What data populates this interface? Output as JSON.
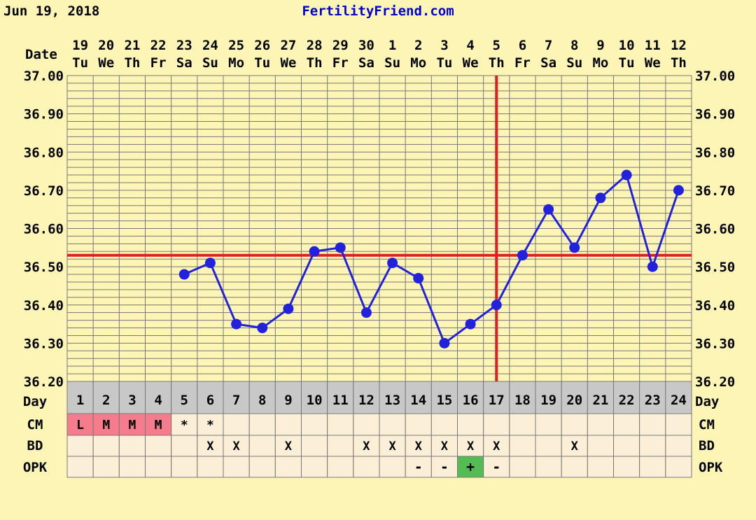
{
  "header": {
    "date": "Jun 19, 2018",
    "site": "FertilityFriend.com"
  },
  "colors": {
    "background": "#fdf5b6",
    "grid": "#777777",
    "temp_line": "#2222dd",
    "coverline": "#e02020",
    "site_text": "#0000cc",
    "cell_bg": "#fcefd8",
    "day_row_bg": "#c8c8c8",
    "menses_bg": "#f47c8c",
    "opk_positive_bg": "#55bb55"
  },
  "chart_data": {
    "type": "line",
    "row_labels": {
      "date": "Date",
      "day": "Day",
      "cm": "CM",
      "bd": "BD",
      "opk": "OPK"
    },
    "dates": [
      "19",
      "20",
      "21",
      "22",
      "23",
      "24",
      "25",
      "26",
      "27",
      "28",
      "29",
      "30",
      "1",
      "2",
      "3",
      "4",
      "5",
      "6",
      "7",
      "8",
      "9",
      "10",
      "11",
      "12"
    ],
    "weekdays": [
      "Tu",
      "We",
      "Th",
      "Fr",
      "Sa",
      "Su",
      "Mo",
      "Tu",
      "We",
      "Th",
      "Fr",
      "Sa",
      "Su",
      "Mo",
      "Tu",
      "We",
      "Th",
      "Fr",
      "Sa",
      "Su",
      "Mo",
      "Tu",
      "We",
      "Th"
    ],
    "days": [
      "1",
      "2",
      "3",
      "4",
      "5",
      "6",
      "7",
      "8",
      "9",
      "10",
      "11",
      "12",
      "13",
      "14",
      "15",
      "16",
      "17",
      "18",
      "19",
      "20",
      "21",
      "22",
      "23",
      "24"
    ],
    "ylim": [
      36.2,
      37.0
    ],
    "y_ticks": [
      "36.20",
      "36.30",
      "36.40",
      "36.50",
      "36.60",
      "36.70",
      "36.80",
      "36.90",
      "37.00"
    ],
    "temperatures": [
      null,
      null,
      null,
      null,
      36.48,
      36.51,
      36.35,
      36.34,
      36.39,
      36.54,
      36.55,
      36.38,
      36.51,
      36.47,
      36.3,
      36.35,
      36.4,
      36.53,
      36.65,
      36.55,
      36.68,
      36.74,
      36.5,
      36.7
    ],
    "coverline": 36.53,
    "ovulation_day": 17,
    "cm": [
      "L",
      "M",
      "M",
      "M",
      "*",
      "*",
      "",
      "",
      "",
      "",
      "",
      "",
      "",
      "",
      "",
      "",
      "",
      "",
      "",
      "",
      "",
      "",
      "",
      ""
    ],
    "bd": [
      "",
      "",
      "",
      "",
      "",
      "X",
      "X",
      "",
      "X",
      "",
      "",
      "X",
      "X",
      "X",
      "X",
      "X",
      "X",
      "",
      "",
      "X",
      "",
      "",
      "",
      ""
    ],
    "opk": [
      "",
      "",
      "",
      "",
      "",
      "",
      "",
      "",
      "",
      "",
      "",
      "",
      "",
      "-",
      "-",
      "+",
      "-",
      "",
      "",
      "",
      "",
      "",
      "",
      ""
    ],
    "grid": true
  }
}
